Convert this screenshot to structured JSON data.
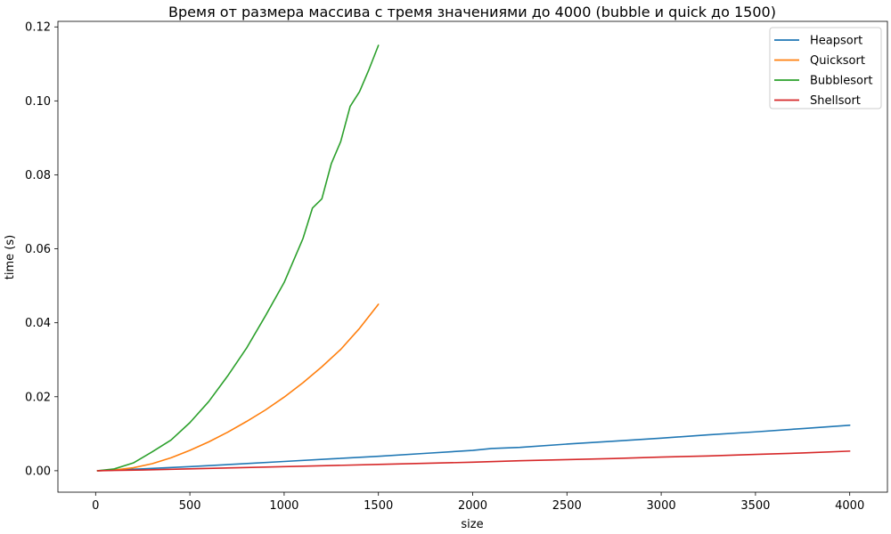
{
  "chart_data": {
    "type": "line",
    "title": "Время от размера массива с тремя значениями до 4000 (bubble и quick до 1500)",
    "xlabel": "size",
    "ylabel": "time (s)",
    "xlim": [
      -200,
      4200
    ],
    "ylim": [
      -0.0058,
      0.1215
    ],
    "xticks": [
      0,
      500,
      1000,
      1500,
      2000,
      2500,
      3000,
      3500,
      4000
    ],
    "xtick_labels": [
      "0",
      "500",
      "1000",
      "1500",
      "2000",
      "2500",
      "3000",
      "3500",
      "4000"
    ],
    "yticks": [
      0.0,
      0.02,
      0.04,
      0.06,
      0.08,
      0.1,
      0.12
    ],
    "ytick_labels": [
      "0.00",
      "0.02",
      "0.04",
      "0.06",
      "0.08",
      "0.10",
      "0.12"
    ],
    "grid": false,
    "legend_position": "top-right",
    "series": [
      {
        "name": "Heapsort",
        "color": "#1f77b4",
        "x": [
          10,
          250,
          500,
          750,
          1000,
          1250,
          1500,
          1750,
          2000,
          2100,
          2250,
          2500,
          2750,
          3000,
          3250,
          3500,
          3750,
          4000
        ],
        "y": [
          0.0,
          0.0005,
          0.0011,
          0.0018,
          0.0025,
          0.0032,
          0.0039,
          0.0047,
          0.0055,
          0.006,
          0.0063,
          0.0072,
          0.008,
          0.0088,
          0.0097,
          0.0105,
          0.0114,
          0.0123
        ]
      },
      {
        "name": "Quicksort",
        "color": "#ff7f0e",
        "x": [
          10,
          100,
          200,
          300,
          400,
          500,
          600,
          700,
          800,
          900,
          1000,
          1100,
          1200,
          1300,
          1400,
          1500
        ],
        "y": [
          0.0,
          0.0002,
          0.0008,
          0.0019,
          0.0035,
          0.0055,
          0.0078,
          0.0104,
          0.0133,
          0.0164,
          0.0199,
          0.0238,
          0.0281,
          0.0328,
          0.0385,
          0.045
        ]
      },
      {
        "name": "Bubblesort",
        "color": "#2ca02c",
        "x": [
          10,
          100,
          200,
          300,
          400,
          500,
          600,
          700,
          800,
          900,
          1000,
          1100,
          1150,
          1200,
          1250,
          1300,
          1350,
          1400,
          1450,
          1500
        ],
        "y": [
          0.0,
          0.0005,
          0.0021,
          0.0051,
          0.0083,
          0.013,
          0.0187,
          0.0256,
          0.0331,
          0.0418,
          0.0509,
          0.0628,
          0.071,
          0.0735,
          0.083,
          0.089,
          0.0985,
          0.1025,
          0.1085,
          0.115
        ]
      },
      {
        "name": "Shellsort",
        "color": "#d62728",
        "x": [
          10,
          250,
          500,
          750,
          1000,
          1250,
          1500,
          1750,
          2000,
          2250,
          2500,
          2750,
          3000,
          3250,
          3500,
          3750,
          4000
        ],
        "y": [
          0.0,
          0.0002,
          0.0005,
          0.0008,
          0.0011,
          0.0014,
          0.0017,
          0.002,
          0.0023,
          0.0027,
          0.003,
          0.0033,
          0.0037,
          0.004,
          0.0044,
          0.0048,
          0.0053
        ]
      }
    ]
  }
}
